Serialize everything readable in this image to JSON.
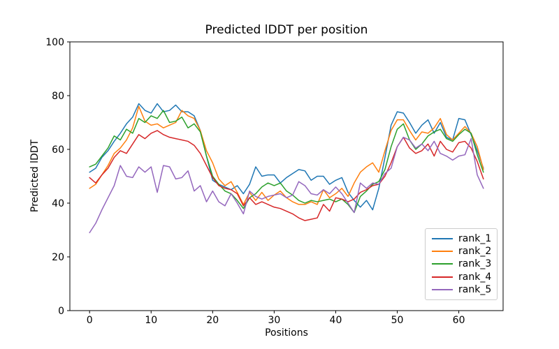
{
  "figure": {
    "background": "#ffffff"
  },
  "chart_data": {
    "type": "line",
    "title": "Predicted lDDT per position",
    "xlabel": "Positions",
    "ylabel": "Predicted lDDT",
    "xlim": [
      -3.2,
      67.2
    ],
    "ylim": [
      0,
      100
    ],
    "xticks": [
      0,
      10,
      20,
      30,
      40,
      50,
      60
    ],
    "yticks": [
      0,
      20,
      40,
      60,
      80,
      100
    ],
    "grid": false,
    "legend_position": "lower right",
    "x": [
      0,
      1,
      2,
      3,
      4,
      5,
      6,
      7,
      8,
      9,
      10,
      11,
      12,
      13,
      14,
      15,
      16,
      17,
      18,
      19,
      20,
      21,
      22,
      23,
      24,
      25,
      26,
      27,
      28,
      29,
      30,
      31,
      32,
      33,
      34,
      35,
      36,
      37,
      38,
      39,
      40,
      41,
      42,
      43,
      44,
      45,
      46,
      47,
      48,
      49,
      50,
      51,
      52,
      53,
      54,
      55,
      56,
      57,
      58,
      59,
      60,
      61,
      62,
      63,
      64
    ],
    "series": [
      {
        "name": "rank_1",
        "color": "#1f77b4",
        "values": [
          51.5,
          53,
          57,
          59.5,
          63,
          66,
          69.5,
          72,
          77,
          74.5,
          73.5,
          77,
          74,
          74.5,
          76.5,
          74,
          74,
          72.5,
          67,
          57.5,
          48.5,
          47,
          46,
          45,
          46.5,
          43.5,
          47,
          53.5,
          50,
          50.5,
          50.5,
          47.5,
          49.5,
          51,
          52.5,
          52,
          48.5,
          50,
          50,
          47,
          48.5,
          49.5,
          44,
          41,
          38.5,
          41,
          37.5,
          45.5,
          57,
          69,
          74,
          73.5,
          70,
          66,
          69,
          71,
          66,
          70,
          64.5,
          63.5,
          71.5,
          71,
          65.5,
          59.5,
          53
        ]
      },
      {
        "name": "rank_2",
        "color": "#ff7f0e",
        "values": [
          45.5,
          47,
          50.5,
          54,
          58.5,
          60.5,
          63.5,
          68,
          76,
          70.5,
          69,
          69.5,
          68,
          69,
          70,
          74.5,
          72.5,
          71.5,
          67,
          59.5,
          55,
          49,
          46.5,
          48,
          44,
          39.5,
          44,
          41,
          44,
          41,
          43,
          44.5,
          42,
          40.5,
          39.5,
          39.5,
          40.5,
          39.5,
          45,
          42,
          43.5,
          45.5,
          42.5,
          47.5,
          51.5,
          53.5,
          55,
          51.5,
          59.5,
          67,
          71,
          71,
          67,
          63.5,
          66.5,
          66,
          68,
          71.5,
          65.5,
          63.5,
          66,
          68.5,
          66,
          61,
          52.5
        ]
      },
      {
        "name": "rank_3",
        "color": "#2ca02c",
        "values": [
          53.5,
          54.5,
          57.5,
          60.5,
          65,
          63.5,
          67.5,
          66,
          71.5,
          70,
          72.5,
          71.5,
          74.5,
          70,
          70.5,
          72,
          68,
          69.5,
          66.5,
          57.5,
          50,
          47,
          44.5,
          43.5,
          41,
          38,
          42,
          43.5,
          46,
          47.5,
          46.5,
          47.5,
          44.5,
          43,
          41,
          40,
          41,
          40.5,
          41,
          41.5,
          40.5,
          41.5,
          39.5,
          36.5,
          42.5,
          44.5,
          47,
          48,
          52.5,
          61,
          67.5,
          69.5,
          63.5,
          60,
          62,
          65,
          66.5,
          67.5,
          64,
          63,
          65.5,
          67.5,
          66,
          58,
          51.5
        ]
      },
      {
        "name": "rank_4",
        "color": "#d62728",
        "values": [
          49.5,
          47.5,
          50.5,
          53,
          57,
          59.5,
          58.5,
          62,
          65.5,
          64,
          66,
          67,
          65.5,
          64.5,
          64,
          63.5,
          63,
          61.5,
          58.5,
          54,
          49.5,
          46.5,
          45.5,
          45,
          43.5,
          39,
          42,
          39.5,
          40.5,
          39.5,
          38.5,
          38,
          37,
          36,
          34.5,
          33.5,
          34,
          34.5,
          39.5,
          37,
          42,
          41.5,
          40.5,
          41.5,
          44,
          45,
          46.5,
          47,
          50,
          55,
          61,
          64.5,
          60.5,
          58.5,
          59.5,
          62,
          57.5,
          63,
          60,
          59,
          62.5,
          63,
          60.5,
          55.5,
          49
        ]
      },
      {
        "name": "rank_5",
        "color": "#9467bd",
        "values": [
          29,
          32.5,
          37.5,
          42,
          46.5,
          54,
          50,
          49.5,
          53.5,
          51.5,
          53.5,
          44,
          54,
          53.5,
          49,
          49.5,
          52,
          44.5,
          46.5,
          40.5,
          44.5,
          40.5,
          39,
          43.5,
          40,
          36,
          44.5,
          42.5,
          41.5,
          42.5,
          43,
          43.5,
          42,
          43,
          48,
          46.5,
          43.5,
          43,
          45,
          43.5,
          46,
          43.5,
          40,
          36.5,
          47.5,
          45.5,
          47.5,
          47,
          51,
          53,
          61,
          64.5,
          63.5,
          60.5,
          62,
          59.5,
          63,
          58.5,
          57.5,
          56,
          57.5,
          58,
          64,
          50.5,
          45.5
        ]
      }
    ]
  },
  "legend": {
    "entries": [
      "rank_1",
      "rank_2",
      "rank_3",
      "rank_4",
      "rank_5"
    ]
  }
}
